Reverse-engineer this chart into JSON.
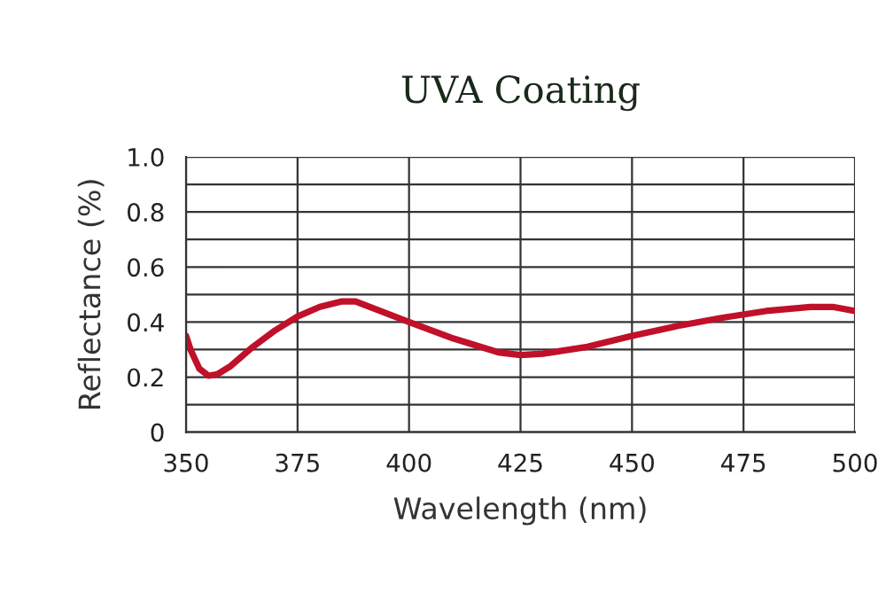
{
  "chart_data": {
    "type": "line",
    "title": "UVA Coating",
    "xlabel": "Wavelength (nm)",
    "ylabel": "Reflectance (%)",
    "x": [
      350,
      351,
      353,
      355,
      357,
      360,
      365,
      370,
      375,
      380,
      385,
      388,
      392,
      400,
      410,
      420,
      425,
      430,
      440,
      450,
      460,
      470,
      480,
      490,
      495,
      500
    ],
    "series": [
      {
        "color": "#c0102a",
        "values": [
          0.35,
          0.3,
          0.23,
          0.205,
          0.21,
          0.24,
          0.31,
          0.37,
          0.42,
          0.455,
          0.475,
          0.475,
          0.45,
          0.4,
          0.34,
          0.29,
          0.28,
          0.285,
          0.31,
          0.35,
          0.385,
          0.415,
          0.44,
          0.455,
          0.455,
          0.44
        ]
      }
    ],
    "xlim": [
      350,
      500
    ],
    "xticks": [
      350,
      375,
      400,
      425,
      450,
      475,
      500
    ],
    "ylim": [
      0,
      1
    ],
    "yticks": [
      {
        "value": 0,
        "label": "0"
      },
      {
        "value": 0.1,
        "label": null
      },
      {
        "value": 0.2,
        "label": "0.2"
      },
      {
        "value": 0.3,
        "label": null
      },
      {
        "value": 0.4,
        "label": "0.4"
      },
      {
        "value": 0.5,
        "label": null
      },
      {
        "value": 0.6,
        "label": "0.6"
      },
      {
        "value": 0.7,
        "label": null
      },
      {
        "value": 0.8,
        "label": "0.8"
      },
      {
        "value": 0.9,
        "label": null
      },
      {
        "value": 1.0,
        "label": "1.0"
      }
    ],
    "grid": true,
    "marker": "none",
    "line_style": "solid"
  }
}
